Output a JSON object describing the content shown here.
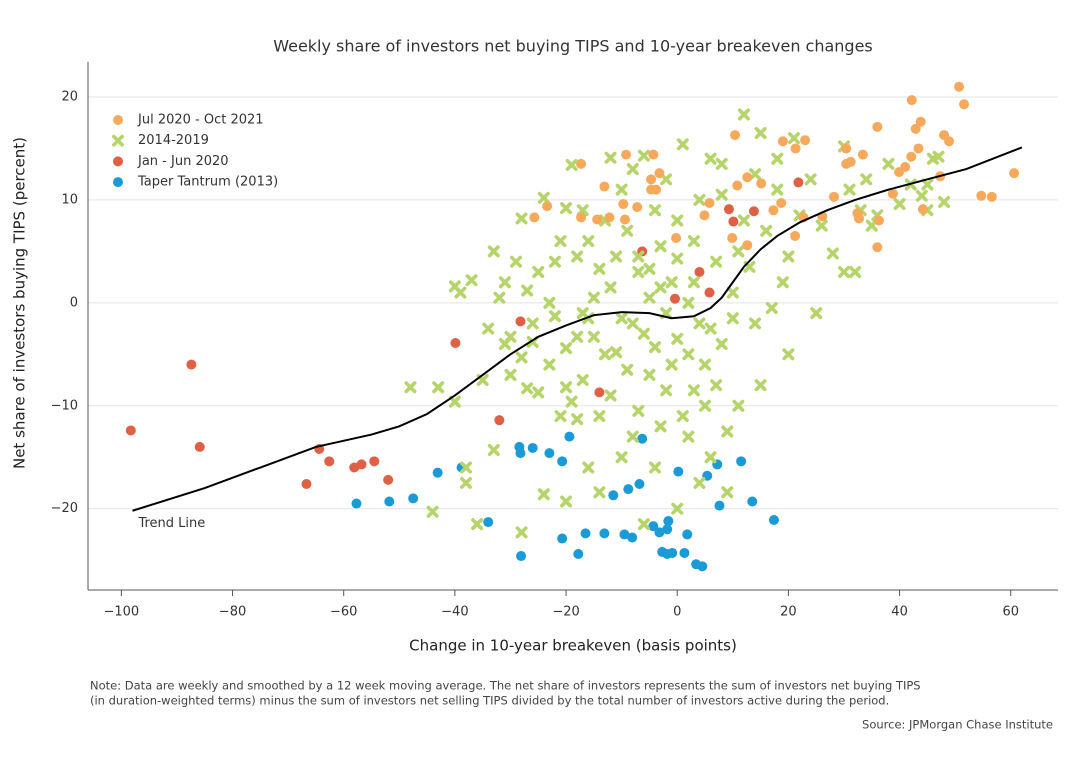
{
  "chart_data": {
    "type": "scatter",
    "title": "Weekly share of investors net buying TIPS and 10-year breakeven changes",
    "x_label": "Change in 10-year breakeven (basis points)",
    "y_label": "Net share of investors buying TIPS (percent)",
    "xlim": [
      -106,
      68.5
    ],
    "ylim": [
      -27.9,
      23.4
    ],
    "xticks": [
      {
        "value": -100,
        "label": "−100"
      },
      {
        "value": -80,
        "label": "−80"
      },
      {
        "value": -60,
        "label": "−60"
      },
      {
        "value": -40,
        "label": "−40"
      },
      {
        "value": -20,
        "label": "−20"
      },
      0,
      20,
      40,
      60
    ],
    "yticks": [
      {
        "value": -20,
        "label": "−20"
      },
      {
        "value": -10,
        "label": "−10"
      },
      0,
      10,
      20
    ],
    "grid": true,
    "legend": "upper left",
    "series": [
      {
        "name": "Jul 2020 - Oct 2021",
        "color": "#f7a95b",
        "marker": "circle",
        "x": [
          50.7,
          42.2,
          51.6,
          43.8,
          42.9,
          36,
          48,
          10.4,
          48.9,
          23,
          19,
          21.3,
          30.4,
          43.4,
          42.1,
          -9.2,
          -4.3,
          33.4,
          31.2,
          30.4,
          41,
          -17.3,
          39.9,
          60.6,
          -3.2,
          12.6,
          47.3,
          -4.7,
          10.8,
          15.1,
          -13.1,
          -4.7,
          -3.8,
          38.8,
          54.7,
          56.6,
          28.2,
          -23.4,
          -7.2,
          -9.7,
          5.8,
          44.2,
          18.7,
          -25.7,
          -17.3,
          -14.4,
          -12.2,
          -9.4,
          4.9,
          32.4,
          32.7,
          17.3,
          22.7,
          26.1,
          36.3,
          9.9,
          -0.2,
          21.2,
          12.6,
          36
        ],
        "y": [
          21,
          19.7,
          19.3,
          17.6,
          16.9,
          17.1,
          16.3,
          16.3,
          15.7,
          15.8,
          15.7,
          15,
          15,
          15,
          14.2,
          14.4,
          14.4,
          14.4,
          13.7,
          13.5,
          13.2,
          13.5,
          12.7,
          12.6,
          12.6,
          12.2,
          12.3,
          12,
          11.4,
          11.6,
          11.3,
          11,
          11,
          10.6,
          10.4,
          10.3,
          10.3,
          9.4,
          9.3,
          9.6,
          9.7,
          9.1,
          9.7,
          8.3,
          8.3,
          8.1,
          8.3,
          8.1,
          8.5,
          8.7,
          8.2,
          9,
          8.3,
          8.4,
          8,
          6.3,
          6.3,
          6.5,
          5.6,
          5.4
        ]
      },
      {
        "name": "2014-2019",
        "color": "#b5d56a",
        "marker": "cross",
        "x": [
          -48,
          -43,
          -44,
          -40,
          -38,
          -38,
          -36,
          -40,
          -39,
          -37,
          -35,
          -34,
          -33,
          -33,
          -32,
          -31,
          -31,
          -30,
          -30,
          -29,
          -28,
          -28,
          -28,
          -27,
          -27,
          -26,
          -26,
          -25,
          -25,
          -24,
          -24,
          -23,
          -23,
          -22,
          -22,
          -21,
          -21,
          -20,
          -20,
          -20,
          -20,
          -19,
          -19,
          -18,
          -18,
          -17,
          -17,
          -17,
          -16,
          -16,
          -15,
          -15,
          -14,
          -14,
          -14,
          -13,
          -13,
          -12,
          -12,
          -12,
          -11,
          -10,
          -10,
          -10,
          -9,
          -9,
          -8,
          -8,
          -8,
          -7,
          -7,
          -7,
          -6,
          -6,
          -6,
          -5,
          -5,
          -5,
          -4,
          -4,
          -4,
          -3,
          -3,
          -3,
          -2,
          -2,
          -2,
          -1,
          -1,
          0,
          0,
          0,
          0,
          1,
          1,
          2,
          2,
          2,
          3,
          3,
          3,
          4,
          4,
          4,
          5,
          5,
          6,
          6,
          6,
          7,
          7,
          8,
          8,
          8,
          9,
          9,
          10,
          10,
          11,
          11,
          12,
          12,
          13,
          14,
          14,
          15,
          15,
          16,
          17,
          18,
          18,
          19,
          20,
          20,
          21,
          22,
          24,
          25,
          26,
          28,
          30,
          30,
          31,
          32,
          33,
          34,
          35,
          38,
          40,
          42,
          44,
          45,
          45,
          46,
          47,
          48,
          36,
          -16,
          -18,
          -11
        ],
        "y": [
          -8.2,
          -8.2,
          -20.3,
          -9.6,
          -17.5,
          -16,
          -21.5,
          1.6,
          1,
          2.2,
          -7.5,
          -2.5,
          5,
          -14.3,
          0.5,
          2,
          -4,
          -7,
          -3.3,
          4,
          -5.3,
          8.2,
          -22.3,
          -8.3,
          1.2,
          -2,
          -3.8,
          -8.7,
          3,
          10.2,
          -18.6,
          -6,
          0,
          -1.3,
          4,
          6,
          -11,
          -4.4,
          -8.2,
          9.2,
          -19.3,
          13.4,
          -9.6,
          -3.3,
          4.5,
          9,
          -1,
          -7.5,
          6,
          -16,
          -3.3,
          0.5,
          3.3,
          -11,
          -18.4,
          8,
          -5,
          14.1,
          -9,
          1.5,
          4.5,
          -1.5,
          -15,
          11,
          7,
          -6.5,
          -2,
          13,
          -13,
          3,
          4.5,
          -10.5,
          -3,
          14.3,
          -21.5,
          0.5,
          -7,
          3.3,
          -4.3,
          9,
          -16,
          1.5,
          -12,
          5.5,
          -1,
          -8.5,
          12,
          2,
          -6,
          -3.5,
          8,
          -20,
          4.3,
          -11,
          15.4,
          0,
          -5,
          -13,
          2,
          -8.5,
          6,
          -2,
          10,
          -17.5,
          -6,
          -10,
          14,
          -2.5,
          -15,
          4,
          -8,
          -4,
          13.5,
          10.5,
          -12.5,
          -18.4,
          1,
          -1.5,
          5,
          -10,
          18.3,
          8,
          3.5,
          -2,
          12.5,
          16.5,
          -8,
          7,
          -0.5,
          11,
          14,
          2,
          -5,
          4.5,
          16,
          8.5,
          12,
          -1,
          7.5,
          4.8,
          15.2,
          3,
          11,
          3,
          9,
          12,
          7.5,
          13.5,
          9.6,
          11.5,
          10.4,
          11.5,
          9,
          14,
          14.2,
          9.8,
          8.5,
          -1.5,
          -11.3,
          -4.8
        ]
      },
      {
        "name": "Jan - Jun 2020",
        "color": "#e06046",
        "marker": "circle",
        "x": [
          -87.4,
          -98.3,
          -85.9,
          -39.9,
          -28.2,
          -6.3,
          4,
          -0.4,
          5.8,
          9.3,
          10.1,
          13.8,
          21.8,
          -14,
          -32,
          -64.4,
          -62.6,
          -58.1,
          -56.8,
          -54.5,
          -52,
          -66.7
        ],
        "y": [
          -6,
          -12.4,
          -14,
          -3.9,
          -1.8,
          5,
          3,
          0.4,
          1,
          9.1,
          7.9,
          8.9,
          11.7,
          -8.7,
          -11.4,
          -14.2,
          -15.4,
          -16,
          -15.7,
          -15.4,
          -17.2,
          -17.6
        ]
      },
      {
        "name": "Taper Tantrum (2013)",
        "color": "#1a9bd7",
        "marker": "circle",
        "x": [
          -57.7,
          -51.8,
          -47.5,
          -43.1,
          -38.8,
          -34,
          -28.4,
          -28.2,
          -26,
          -23,
          -20.7,
          -19.4,
          -20.7,
          -28.1,
          -17.8,
          -16.5,
          -13.1,
          -9.5,
          -8.1,
          -11.5,
          -8.8,
          -6.8,
          -6.3,
          -4.3,
          -3.2,
          -1.8,
          -1.6,
          -2.7,
          -1.8,
          -0.9,
          1.3,
          1.8,
          0.2,
          3.4,
          4.5,
          5.4,
          7.2,
          7.6,
          11.5,
          13.5,
          17.4
        ],
        "y": [
          -19.5,
          -19.3,
          -19,
          -16.5,
          -16,
          -21.3,
          -14,
          -14.6,
          -14.1,
          -14.6,
          -15.4,
          -13,
          -22.9,
          -24.6,
          -24.4,
          -22.4,
          -22.4,
          -22.5,
          -22.8,
          -18.7,
          -18.1,
          -17.6,
          -13.2,
          -21.7,
          -22.3,
          -22,
          -21.2,
          -24.2,
          -24.4,
          -24.3,
          -24.3,
          -22.5,
          -16.4,
          -25.4,
          -25.6,
          -16.8,
          -15.7,
          -19.7,
          -15.4,
          -19.3,
          -21.1
        ]
      }
    ],
    "trend_line": {
      "label": "Trend Line",
      "color": "#000000",
      "x": [
        -98,
        -85,
        -75,
        -65,
        -55,
        -50,
        -45,
        -40,
        -35,
        -30,
        -25,
        -20,
        -15,
        -10,
        -5,
        -1,
        3,
        6,
        8,
        10,
        12,
        15,
        18,
        22,
        27,
        32,
        38,
        45,
        52,
        62
      ],
      "y": [
        -20.2,
        -18,
        -16,
        -14,
        -12.8,
        -12,
        -10.8,
        -9,
        -7,
        -5,
        -3.3,
        -2.2,
        -1.2,
        -0.9,
        -1,
        -1.5,
        -1.3,
        -0.5,
        0.5,
        2,
        3.5,
        5.2,
        6.5,
        7.8,
        9,
        10,
        11,
        12,
        13,
        15.1
      ]
    }
  },
  "note": [
    "Note: Data are weekly and smoothed by a 12 week moving average. The net share of investors represents the sum of investors net buying TIPS",
    "(in duration-weighted terms) minus the sum of investors net selling TIPS divided by the total number of investors active during the period."
  ],
  "source": "Source: JPMorgan Chase Institute"
}
